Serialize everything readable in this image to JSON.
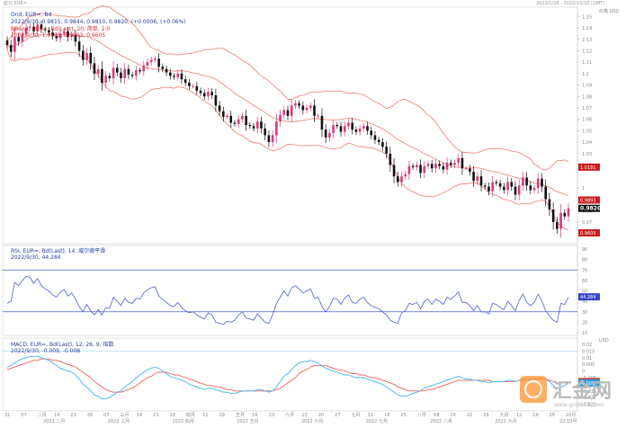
{
  "window": {
    "title": "欧元 EUR=",
    "date_range": "2022/1/26 - 2022/10/10 (GMT)"
  },
  "watermark": {
    "text": "汇金网",
    "url": "www.gold678.com"
  },
  "colors": {
    "up": "#e0357c",
    "down": "#111111",
    "band": "#f08a80",
    "rsi": "#4a5fd0",
    "macd": "#3fb6f0",
    "signal": "#f0605a"
  },
  "x_axis": {
    "labels": [
      "31",
      "07",
      "二月",
      "14",
      "21",
      "28",
      "07",
      "三月",
      "14",
      "21",
      "28",
      "四月",
      "11",
      "19",
      "五月",
      "16",
      "23",
      "六月",
      "13",
      "20",
      "27",
      "七月",
      "11",
      "18",
      "25",
      "八月",
      "08",
      "15",
      "22",
      "29",
      "九月",
      "12",
      "19",
      "26",
      "10月"
    ],
    "bottom_tags": [
      "2022 二月",
      "2022 三月",
      "2022 四月",
      "2022 五月",
      "2022 六月",
      "2022 七月",
      "2022 八月",
      "2022 九月",
      "22 10月"
    ]
  },
  "chart_data": [
    {
      "type": "candlestick",
      "symbol_line": "Ond, EUR=, Bd",
      "ohlc_line": "2022/9/30, 0.9815, 0.9844, 0.9810, 0.9820, (+0.0006, (+0.06%)",
      "bband_line": "BBand, EUR=, Bd(Last), 20, 简单, 2.0",
      "bband_values": "2022/9/30, 1.0181, 0.9893, 0.9605",
      "axis_title": "价格 USD",
      "ylim": [
        0.955,
        1.155
      ],
      "ticks": [
        "1.15",
        "1.14",
        "1.13",
        "1.12",
        "1.11",
        "1.1",
        "1.09",
        "1.08",
        "1.07",
        "1.06",
        "1.05",
        "1.04",
        "1.03",
        "1.02",
        "1",
        "0.99",
        "0.98",
        "0.97",
        "0.96"
      ],
      "last_price": "0.9820",
      "band_tags": {
        "upper": "1.0181",
        "middle": "0.9893",
        "lower": "0.9605"
      },
      "closes": [
        1.125,
        1.119,
        1.132,
        1.128,
        1.135,
        1.14,
        1.141,
        1.137,
        1.143,
        1.139,
        1.138,
        1.136,
        1.133,
        1.131,
        1.135,
        1.137,
        1.132,
        1.134,
        1.128,
        1.12,
        1.112,
        1.118,
        1.109,
        1.1,
        1.104,
        1.092,
        1.098,
        1.096,
        1.105,
        1.101,
        1.096,
        1.104,
        1.099,
        1.098,
        1.103,
        1.102,
        1.107,
        1.11,
        1.112,
        1.113,
        1.106,
        1.104,
        1.101,
        1.098,
        1.097,
        1.1,
        1.095,
        1.092,
        1.089,
        1.089,
        1.085,
        1.083,
        1.08,
        1.084,
        1.081,
        1.072,
        1.067,
        1.062,
        1.063,
        1.057,
        1.056,
        1.06,
        1.063,
        1.055,
        1.054,
        1.052,
        1.058,
        1.052,
        1.046,
        1.04,
        1.046,
        1.058,
        1.064,
        1.068,
        1.063,
        1.072,
        1.074,
        1.072,
        1.068,
        1.07,
        1.072,
        1.063,
        1.063,
        1.051,
        1.044,
        1.048,
        1.055,
        1.054,
        1.049,
        1.054,
        1.057,
        1.051,
        1.049,
        1.052,
        1.054,
        1.05,
        1.046,
        1.042,
        1.04,
        1.036,
        1.03,
        1.02,
        1.01,
        1.005,
        1.01,
        1.012,
        1.019,
        1.018,
        1.02,
        1.013,
        1.019,
        1.021,
        1.017,
        1.021,
        1.019,
        1.016,
        1.022,
        1.02,
        1.022,
        1.026,
        1.017,
        1.017,
        1.014,
        1.006,
        1.01,
        1.002,
        1.001,
        0.997,
        1.005,
        1.004,
        1.001,
        0.998,
        1.005,
        1.001,
        0.994,
        1.002,
        1.009,
        1.002,
        0.998,
        1.0,
        1.008,
        1.001,
        0.99,
        0.981,
        0.97,
        0.964,
        0.978,
        0.975,
        0.982
      ]
    },
    {
      "type": "line",
      "legend_line": "RSI, EUR=, Bd(Last), 14, 威尔德平滑",
      "value_line": "2022/9/30, 44.284",
      "ylim": [
        10,
        90
      ],
      "ticks": [
        "90",
        "80",
        "70",
        "60",
        "50",
        "40",
        "30",
        "20",
        "10"
      ],
      "levels": [
        70,
        30
      ],
      "last_tag": "44.284",
      "values": [
        38,
        40,
        58,
        55,
        60,
        64,
        63,
        57,
        62,
        55,
        52,
        50,
        46,
        44,
        49,
        51,
        45,
        48,
        42,
        35,
        30,
        37,
        31,
        27,
        32,
        27,
        34,
        33,
        44,
        40,
        36,
        43,
        39,
        38,
        43,
        42,
        48,
        51,
        53,
        54,
        45,
        42,
        39,
        36,
        35,
        39,
        34,
        31,
        29,
        30,
        27,
        25,
        23,
        29,
        27,
        20,
        19,
        18,
        21,
        20,
        22,
        27,
        30,
        24,
        23,
        22,
        28,
        24,
        20,
        19,
        27,
        38,
        44,
        50,
        45,
        53,
        55,
        52,
        48,
        50,
        52,
        43,
        44,
        35,
        30,
        35,
        43,
        42,
        37,
        43,
        46,
        39,
        38,
        42,
        44,
        39,
        36,
        34,
        33,
        30,
        27,
        22,
        20,
        19,
        29,
        31,
        38,
        37,
        39,
        33,
        40,
        42,
        37,
        42,
        40,
        37,
        44,
        42,
        45,
        49,
        39,
        39,
        36,
        31,
        36,
        30,
        30,
        28,
        38,
        37,
        34,
        32,
        40,
        36,
        31,
        41,
        47,
        39,
        36,
        39,
        47,
        40,
        31,
        26,
        22,
        20,
        38,
        37,
        44
      ]
    },
    {
      "type": "line",
      "legend_line": "MACD, EUR=, Bd(Last), 12, 26, 9, 指数",
      "value_line": "2022/9/30, -0.009, -0.008",
      "axis_title": "USD",
      "ylim": [
        -0.028,
        0.022
      ],
      "ticks": [
        "0.02",
        "0.015",
        "0.01",
        "0.005",
        "0",
        "-0.005",
        "-0.01",
        "-0.015",
        "-0.02",
        "-0.025"
      ],
      "macd_tags": {
        "macd": "-0.009",
        "signal": "-0.008"
      },
      "series": [
        {
          "name": "MACD",
          "values": [
            0.003,
            0.004,
            0.006,
            0.008,
            0.009,
            0.01,
            0.011,
            0.011,
            0.011,
            0.01,
            0.009,
            0.008,
            0.006,
            0.004,
            0.002,
            0.001,
            0.0,
            -0.001,
            -0.003,
            -0.006,
            -0.01,
            -0.012,
            -0.015,
            -0.018,
            -0.019,
            -0.021,
            -0.021,
            -0.02,
            -0.018,
            -0.016,
            -0.015,
            -0.012,
            -0.01,
            -0.008,
            -0.005,
            -0.003,
            -0.001,
            0.001,
            0.002,
            0.003,
            0.002,
            0.0,
            -0.002,
            -0.004,
            -0.005,
            -0.006,
            -0.007,
            -0.008,
            -0.01,
            -0.011,
            -0.012,
            -0.013,
            -0.014,
            -0.013,
            -0.013,
            -0.014,
            -0.015,
            -0.016,
            -0.016,
            -0.017,
            -0.017,
            -0.016,
            -0.015,
            -0.015,
            -0.015,
            -0.015,
            -0.014,
            -0.014,
            -0.015,
            -0.016,
            -0.015,
            -0.012,
            -0.008,
            -0.004,
            -0.002,
            0.001,
            0.004,
            0.006,
            0.007,
            0.007,
            0.008,
            0.007,
            0.006,
            0.004,
            0.002,
            0.001,
            0.0,
            -0.001,
            -0.002,
            -0.003,
            -0.003,
            -0.004,
            -0.005,
            -0.005,
            -0.005,
            -0.006,
            -0.007,
            -0.008,
            -0.009,
            -0.01,
            -0.012,
            -0.014,
            -0.016,
            -0.018,
            -0.019,
            -0.019,
            -0.018,
            -0.017,
            -0.016,
            -0.015,
            -0.013,
            -0.012,
            -0.011,
            -0.01,
            -0.009,
            -0.008,
            -0.007,
            -0.006,
            -0.005,
            -0.004,
            -0.005,
            -0.006,
            -0.006,
            -0.007,
            -0.007,
            -0.008,
            -0.008,
            -0.009,
            -0.008,
            -0.008,
            -0.008,
            -0.008,
            -0.007,
            -0.007,
            -0.008,
            -0.007,
            -0.006,
            -0.006,
            -0.006,
            -0.006,
            -0.005,
            -0.005,
            -0.006,
            -0.008,
            -0.011,
            -0.013,
            -0.012,
            -0.011,
            -0.009
          ]
        },
        {
          "name": "Signal",
          "values": [
            0.001,
            0.002,
            0.003,
            0.004,
            0.005,
            0.006,
            0.007,
            0.008,
            0.008,
            0.009,
            0.009,
            0.009,
            0.008,
            0.008,
            0.007,
            0.006,
            0.005,
            0.004,
            0.003,
            0.001,
            -0.001,
            -0.003,
            -0.005,
            -0.008,
            -0.01,
            -0.012,
            -0.014,
            -0.015,
            -0.016,
            -0.016,
            -0.016,
            -0.015,
            -0.014,
            -0.013,
            -0.011,
            -0.009,
            -0.007,
            -0.005,
            -0.004,
            -0.002,
            -0.001,
            -0.001,
            -0.001,
            -0.002,
            -0.003,
            -0.003,
            -0.004,
            -0.005,
            -0.006,
            -0.007,
            -0.008,
            -0.009,
            -0.01,
            -0.011,
            -0.011,
            -0.012,
            -0.012,
            -0.013,
            -0.014,
            -0.014,
            -0.015,
            -0.015,
            -0.015,
            -0.015,
            -0.015,
            -0.015,
            -0.015,
            -0.015,
            -0.015,
            -0.015,
            -0.015,
            -0.014,
            -0.013,
            -0.011,
            -0.009,
            -0.007,
            -0.005,
            -0.002,
            0.0,
            0.001,
            0.003,
            0.004,
            0.004,
            0.004,
            0.004,
            0.003,
            0.002,
            0.001,
            0.001,
            0.0,
            -0.001,
            -0.002,
            -0.002,
            -0.003,
            -0.003,
            -0.004,
            -0.005,
            -0.005,
            -0.006,
            -0.007,
            -0.008,
            -0.009,
            -0.01,
            -0.012,
            -0.013,
            -0.014,
            -0.015,
            -0.015,
            -0.015,
            -0.015,
            -0.015,
            -0.014,
            -0.014,
            -0.013,
            -0.012,
            -0.011,
            -0.01,
            -0.009,
            -0.008,
            -0.007,
            -0.007,
            -0.007,
            -0.007,
            -0.007,
            -0.007,
            -0.007,
            -0.007,
            -0.007,
            -0.008,
            -0.008,
            -0.008,
            -0.008,
            -0.008,
            -0.008,
            -0.008,
            -0.007,
            -0.007,
            -0.007,
            -0.007,
            -0.006,
            -0.006,
            -0.006,
            -0.006,
            -0.007,
            -0.008,
            -0.009,
            -0.009,
            -0.009,
            -0.008
          ]
        }
      ]
    }
  ]
}
